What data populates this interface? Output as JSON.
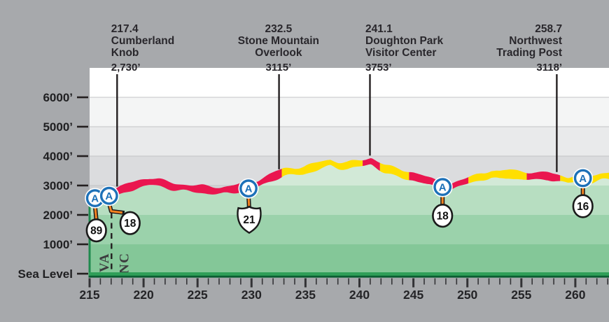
{
  "chart_data": {
    "type": "area",
    "title": "",
    "xlabel": "",
    "ylabel": "",
    "x_axis": {
      "major_ticks": [
        215,
        220,
        225,
        230,
        235,
        240,
        245,
        250,
        255,
        260
      ],
      "minor_tick_step": 1,
      "range": [
        215,
        263.3
      ]
    },
    "y_axis": {
      "tick_labels": [
        "6000’",
        "5000’",
        "4000’",
        "3000’",
        "2000’",
        "1000’",
        "Sea Level"
      ],
      "tick_values": [
        6000,
        5000,
        4000,
        3000,
        2000,
        1000,
        0
      ],
      "range": [
        0,
        7000
      ],
      "unit": "feet"
    },
    "profile_mp_elev": [
      [
        215.0,
        2550
      ],
      [
        215.6,
        2585
      ],
      [
        216.2,
        2615
      ],
      [
        216.8,
        2650
      ],
      [
        217.4,
        2740
      ],
      [
        218.0,
        2830
      ],
      [
        218.6,
        2940
      ],
      [
        219.3,
        3030
      ],
      [
        219.9,
        3085
      ],
      [
        220.6,
        3120
      ],
      [
        221.3,
        3080
      ],
      [
        222.0,
        3020
      ],
      [
        222.8,
        2970
      ],
      [
        223.6,
        2935
      ],
      [
        224.5,
        2905
      ],
      [
        225.4,
        2890
      ],
      [
        226.3,
        2865
      ],
      [
        227.2,
        2840
      ],
      [
        228.0,
        2865
      ],
      [
        228.8,
        2915
      ],
      [
        229.7,
        2955
      ],
      [
        230.6,
        3050
      ],
      [
        231.4,
        3180
      ],
      [
        232.2,
        3330
      ],
      [
        233.0,
        3440
      ],
      [
        233.9,
        3480
      ],
      [
        234.8,
        3530
      ],
      [
        235.7,
        3620
      ],
      [
        236.5,
        3720
      ],
      [
        237.3,
        3780
      ],
      [
        238.1,
        3700
      ],
      [
        238.9,
        3680
      ],
      [
        239.7,
        3720
      ],
      [
        240.5,
        3760
      ],
      [
        241.1,
        3820
      ],
      [
        241.7,
        3700
      ],
      [
        242.4,
        3560
      ],
      [
        243.2,
        3450
      ],
      [
        244.0,
        3380
      ],
      [
        244.9,
        3330
      ],
      [
        245.8,
        3240
      ],
      [
        246.7,
        3100
      ],
      [
        247.7,
        2950
      ],
      [
        248.6,
        2990
      ],
      [
        249.5,
        3090
      ],
      [
        250.4,
        3200
      ],
      [
        251.3,
        3320
      ],
      [
        252.2,
        3400
      ],
      [
        253.0,
        3340
      ],
      [
        253.9,
        3400
      ],
      [
        254.8,
        3360
      ],
      [
        255.7,
        3320
      ],
      [
        256.6,
        3280
      ],
      [
        257.5,
        3320
      ],
      [
        258.4,
        3250
      ],
      [
        259.3,
        3180
      ],
      [
        260.1,
        3240
      ],
      [
        260.9,
        3300
      ],
      [
        261.6,
        3250
      ],
      [
        262.4,
        3320
      ],
      [
        263.3,
        3360
      ]
    ],
    "road_surface_segments": [
      {
        "from_mp": 215.0,
        "to_mp": 232.8,
        "color_key": "red"
      },
      {
        "from_mp": 232.8,
        "to_mp": 240.3,
        "color_key": "yellow"
      },
      {
        "from_mp": 240.3,
        "to_mp": 241.9,
        "color_key": "red"
      },
      {
        "from_mp": 241.9,
        "to_mp": 244.6,
        "color_key": "yellow"
      },
      {
        "from_mp": 244.6,
        "to_mp": 250.1,
        "color_key": "red"
      },
      {
        "from_mp": 250.1,
        "to_mp": 255.5,
        "color_key": "yellow"
      },
      {
        "from_mp": 255.5,
        "to_mp": 258.6,
        "color_key": "red"
      },
      {
        "from_mp": 258.6,
        "to_mp": 263.3,
        "color_key": "yellow"
      }
    ],
    "landmarks": [
      {
        "mile": "217.4",
        "name_lines": [
          "Cumberland",
          "Knob"
        ],
        "elevation_label": "2,730’",
        "align": "left",
        "text_mp": 217.0,
        "callout_mp": 217.55
      },
      {
        "mile": "232.5",
        "name_lines": [
          "Stone Mountain",
          "Overlook"
        ],
        "elevation_label": "3115’",
        "align": "center",
        "text_mp": 232.5,
        "callout_mp": 232.55
      },
      {
        "mile": "241.1",
        "name_lines": [
          "Doughton Park",
          "Visitor Center"
        ],
        "elevation_label": "3753’",
        "align": "left",
        "text_mp": 240.55,
        "callout_mp": 240.97
      },
      {
        "mile": "258.7",
        "name_lines": [
          "Northwest",
          "Trading Post"
        ],
        "elevation_label": "3118’",
        "align": "right",
        "text_mp": 258.78,
        "callout_mp": 258.28
      }
    ],
    "access_points": [
      {
        "mp": 215.5,
        "elev": 2570,
        "marker": "A",
        "route": "89",
        "shield": "circle",
        "shield_offset": [
          2,
          46
        ]
      },
      {
        "mp": 216.8,
        "elev": 2650,
        "marker": "A",
        "route": "18",
        "shield": "circle",
        "shield_offset": [
          30,
          39
        ]
      },
      {
        "mp": 229.72,
        "elev": 2900,
        "marker": "A",
        "route": "21",
        "shield": "us",
        "shield_offset": [
          1,
          44
        ]
      },
      {
        "mp": 247.7,
        "elev": 2950,
        "marker": "A",
        "route": "18",
        "shield": "circle",
        "shield_offset": [
          0,
          41
        ]
      },
      {
        "mp": 260.7,
        "elev": 3250,
        "marker": "A",
        "route": "16",
        "shield": "circle",
        "shield_offset": [
          0,
          40
        ]
      }
    ],
    "state_line": {
      "mp": 216.9,
      "left_label": "VA",
      "right_label": "NC"
    },
    "colors": {
      "page_background": "#a7a9ac",
      "ink": "#231f20",
      "red": "#ea164f",
      "yellow": "#ffdf00",
      "marker_blue": "#1d71b8",
      "leader_orange": "#f58220",
      "shield_outline": "#1a1a1a",
      "baseline_green": "#2f9f58",
      "baseline_dark_green": "#0a5e31",
      "left_border_green": "#1f8a4e",
      "sky_bands": [
        "#ffffff",
        "#f4f5f5",
        "#e9eaeb",
        "#dbdcde",
        "#d2d3d5",
        "#cdced0",
        "#c9cacc"
      ],
      "terrain_bands": [
        "#d2e9d7",
        "#b7dec1",
        "#9bd2ab",
        "#84c798"
      ],
      "gridline": "#c3c4c6"
    }
  }
}
